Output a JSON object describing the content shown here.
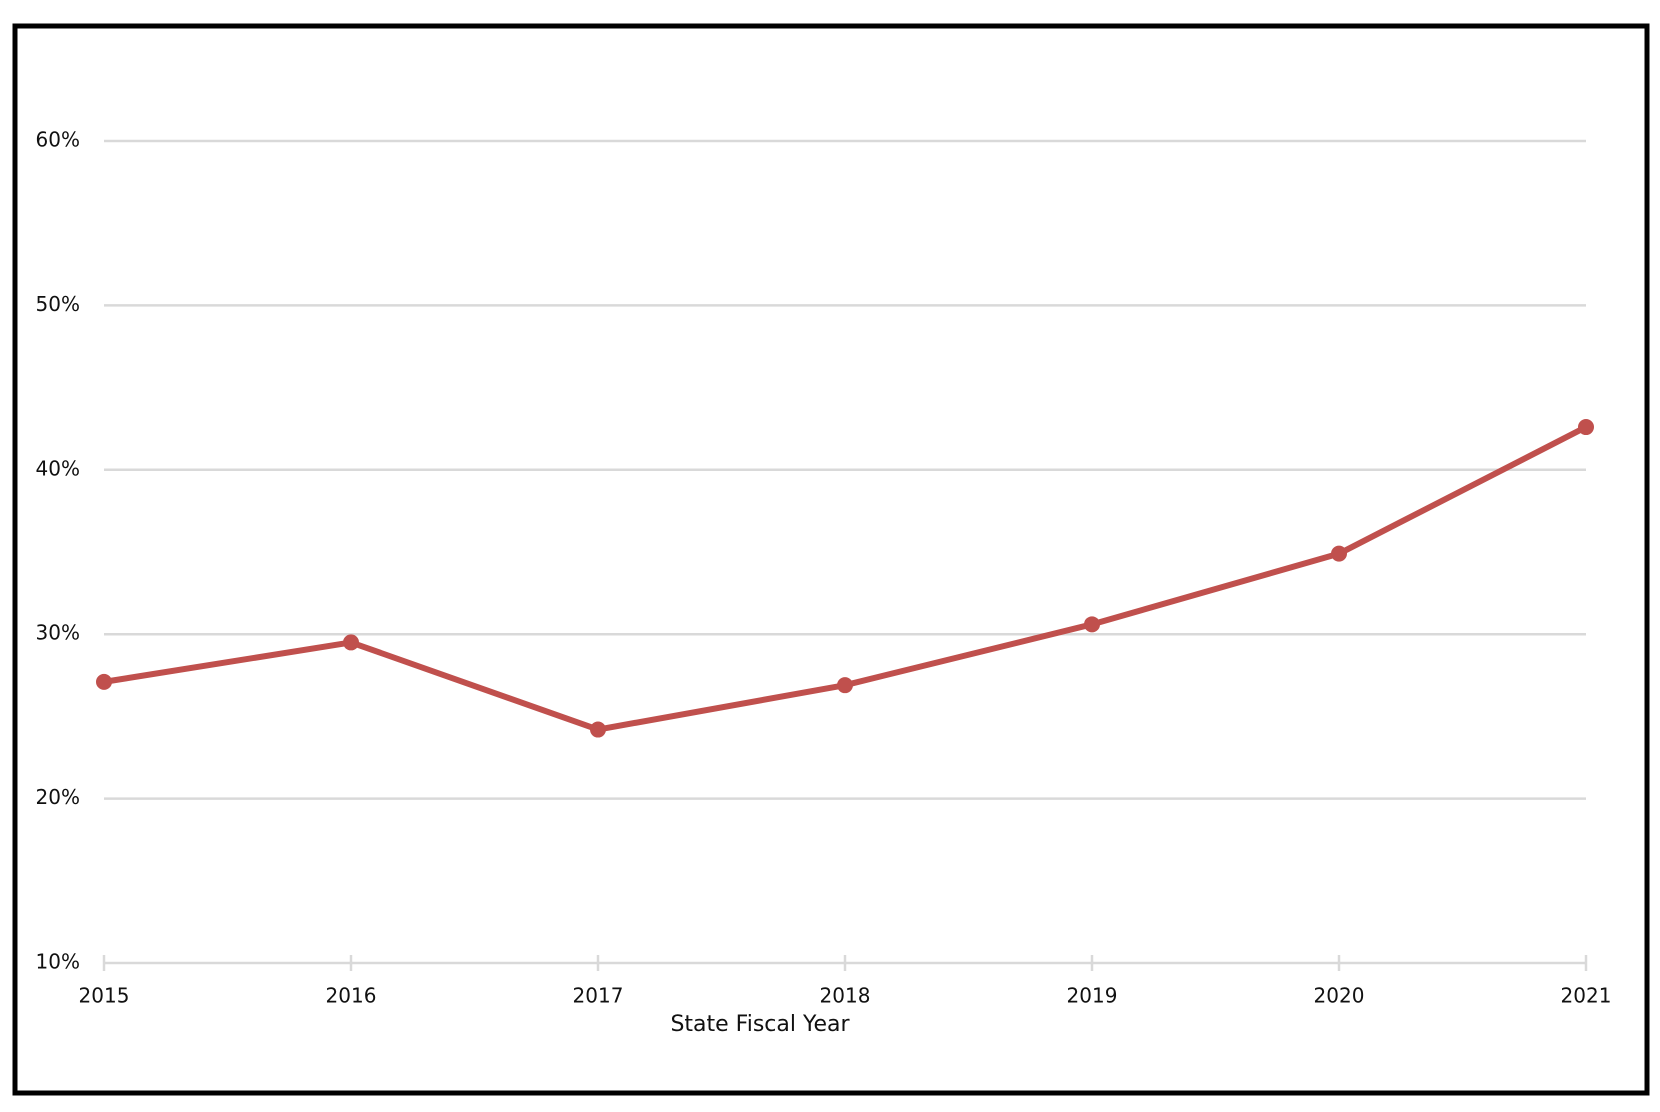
{
  "chart_data": {
    "type": "line",
    "x_label": "State Fiscal Year",
    "x": [
      2015,
      2016,
      2017,
      2018,
      2019,
      2020,
      2021
    ],
    "xlim": [
      2015,
      2021
    ],
    "xticks": [
      2015,
      2016,
      2017,
      2018,
      2019,
      2020,
      2021
    ],
    "series": [
      {
        "color": "#c0504d",
        "values": [
          27.1,
          29.5,
          24.2,
          26.9,
          30.6,
          34.9,
          42.6
        ]
      }
    ],
    "ylim": [
      10,
      60
    ],
    "yticks": [
      {
        "value": 10,
        "label": "10%"
      },
      {
        "value": 20,
        "label": "20%"
      },
      {
        "value": 30,
        "label": "30%"
      },
      {
        "value": 40,
        "label": "40%"
      },
      {
        "value": 50,
        "label": "50%"
      },
      {
        "value": 60,
        "label": "60%"
      }
    ],
    "grid": true
  }
}
